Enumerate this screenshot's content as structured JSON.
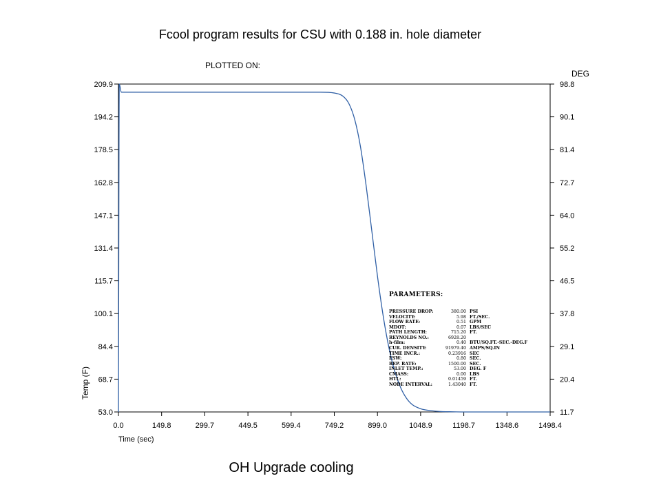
{
  "slide_title": "Fcool program results for CSU with 0.188 in. hole diameter",
  "plotted_on": "PLOTTED ON:",
  "caption": "OH Upgrade cooling",
  "chart_data": {
    "type": "line",
    "xlabel": "Time (sec)",
    "ylabel": "Temp (F)",
    "y2label": "DEG",
    "xlim": [
      0.0,
      1498.4
    ],
    "ylim": [
      53.0,
      209.9
    ],
    "y2lim": [
      11.7,
      98.8
    ],
    "xticks": [
      "0.0",
      "149.8",
      "299.7",
      "449.5",
      "599.4",
      "749.2",
      "899.0",
      "1048.9",
      "1198.7",
      "1348.6",
      "1498.4"
    ],
    "yticks": [
      "53.0",
      "68.7",
      "84.4",
      "100.1",
      "115.7",
      "131.4",
      "147.1",
      "162.8",
      "178.5",
      "194.2",
      "209.9"
    ],
    "y2ticks": [
      "11.7",
      "20.4",
      "29.1",
      "37.8",
      "46.5",
      "55.2",
      "64.0",
      "72.7",
      "81.4",
      "90.1",
      "98.8"
    ],
    "grid": false,
    "series_color": "#2f5fa5",
    "series": [
      {
        "x": [
          0,
          3,
          10,
          100,
          300,
          500,
          700,
          750,
          780,
          800,
          820,
          840,
          860,
          880,
          900,
          920,
          940,
          960,
          980,
          1000,
          1020,
          1050,
          1080,
          1120,
          1150,
          1200,
          1300,
          1400,
          1498.4
        ],
        "y": [
          53.0,
          209.9,
          206.0,
          206.0,
          206.0,
          206.0,
          206.0,
          205.6,
          204.0,
          200.5,
          193.0,
          180.0,
          161.0,
          139.0,
          117.0,
          98.0,
          83.0,
          72.0,
          64.5,
          59.5,
          56.5,
          54.5,
          53.7,
          53.2,
          53.1,
          53.0,
          53.0,
          53.0,
          53.0
        ]
      }
    ]
  },
  "parameters": {
    "title": "PARAMETERS:",
    "rows": [
      {
        "name": "PRESSURE DROP:",
        "value": "380.00",
        "unit": "PSI"
      },
      {
        "name": "VELOCITY:",
        "value": "5.98",
        "unit": "FT./SEC."
      },
      {
        "name": "FLOW RATE:",
        "value": "0.51",
        "unit": "GPM"
      },
      {
        "name": "MDOT:",
        "value": "0.07",
        "unit": "LBS/SEC"
      },
      {
        "name": "PATH LENGTH:",
        "value": "715.20",
        "unit": "FT."
      },
      {
        "name": "REYNOLDS NO.:",
        "value": "6928.20",
        "unit": ""
      },
      {
        "name": "h-film:",
        "value": "0.40",
        "unit": "BTU/SQ.FT.-SEC.-DEG.F"
      },
      {
        "name": "CUR. DENSITY:",
        "value": "91979.40",
        "unit": "AMPS/SQ.IN"
      },
      {
        "name": "TIME INCR.:",
        "value": "0.23916",
        "unit": "SEC"
      },
      {
        "name": "ESW:",
        "value": "0.80",
        "unit": "SEC."
      },
      {
        "name": "REP. RATE:",
        "value": "1500.00",
        "unit": "SEC."
      },
      {
        "name": "INLET TEMP.:",
        "value": "53.00",
        "unit": "DEG. F"
      },
      {
        "name": "CMASS:",
        "value": "0.00",
        "unit": "LBS"
      },
      {
        "name": "HTL:",
        "value": "0.01459",
        "unit": "FT."
      },
      {
        "name": "NODE INTERVAL:",
        "value": "1.43040",
        "unit": "FT."
      }
    ]
  }
}
